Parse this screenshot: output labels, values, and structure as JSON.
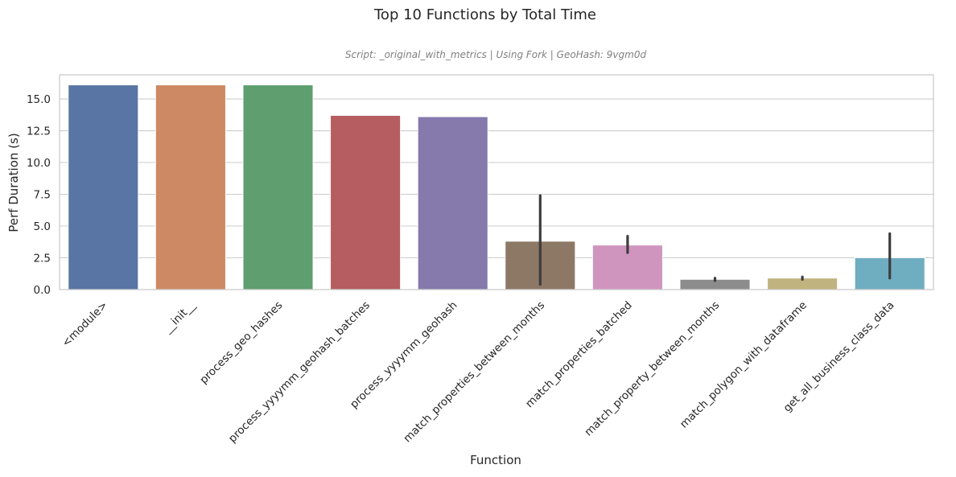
{
  "chart_data": {
    "type": "bar",
    "title": "Top 10 Functions by Total Time",
    "subtitle": "Script: _original_with_metrics | Using Fork | GeoHash: 9vgm0d",
    "xlabel": "Function",
    "ylabel": "Perf Duration (s)",
    "ylim": [
      0,
      16.9
    ],
    "yticks": [
      "0.0",
      "2.5",
      "5.0",
      "7.5",
      "10.0",
      "12.5",
      "15.0"
    ],
    "grid": "y",
    "legend": "none",
    "categories": [
      "<module>",
      "__init__",
      "process_geo_hashes",
      "process_yyyymm_geohash_batches",
      "process_yyyymm_geohash",
      "match_properties_between_months",
      "match_properties_batched",
      "match_property_between_months",
      "match_polygon_with_dataframe",
      "get_all_business_class_data"
    ],
    "values": [
      16.1,
      16.1,
      16.1,
      13.7,
      13.6,
      3.8,
      3.5,
      0.8,
      0.9,
      2.5
    ],
    "error_low": [
      null,
      null,
      null,
      null,
      null,
      0.4,
      2.9,
      0.7,
      0.8,
      0.9
    ],
    "error_high": [
      null,
      null,
      null,
      null,
      null,
      7.4,
      4.2,
      0.9,
      1.0,
      4.4
    ],
    "colors": [
      "#5875a4",
      "#cc8963",
      "#5f9e6e",
      "#b55d60",
      "#857aab",
      "#8d7866",
      "#d095bf",
      "#8c8c8c",
      "#c1b37f",
      "#6fadc1"
    ]
  }
}
